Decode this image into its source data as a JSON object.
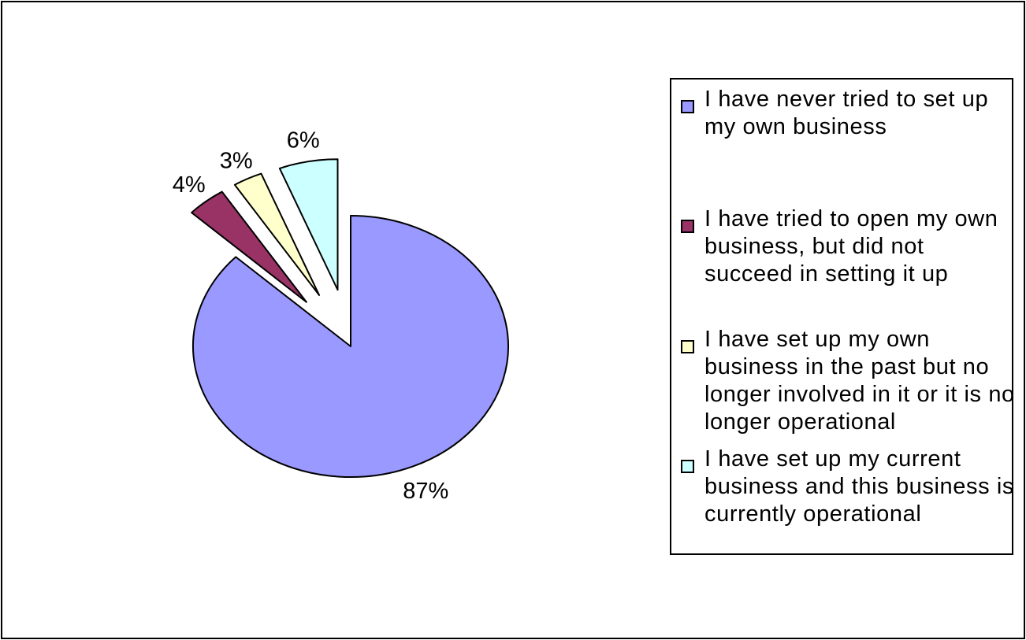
{
  "chart_data": {
    "type": "pie",
    "title": "",
    "exploded": true,
    "legend_position": "right",
    "slices": [
      {
        "label": "I have never tried to set up my own business",
        "value": 87,
        "display": "87%",
        "color": "#9999ff"
      },
      {
        "label": "I have tried to open my own business, but did not succeed in setting it up",
        "value": 4,
        "display": "4%",
        "color": "#993366"
      },
      {
        "label": "I have set up my own business in the past but no longer involved in it or it is no longer operational",
        "value": 3,
        "display": "3%",
        "color": "#ffffcc"
      },
      {
        "label": "I have set up my current business and this business is currently operational",
        "value": 6,
        "display": "6%",
        "color": "#ccffff"
      }
    ]
  }
}
